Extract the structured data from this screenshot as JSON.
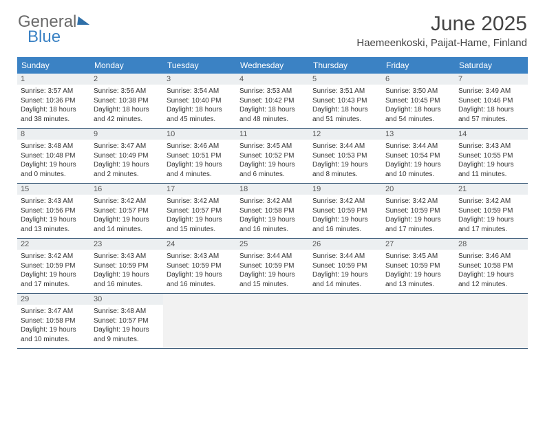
{
  "brand": {
    "part1": "General",
    "part2": "Blue"
  },
  "title": "June 2025",
  "location": "Haemeenkoski, Paijat-Hame, Finland",
  "colors": {
    "header_bg": "#3b82c4",
    "header_text": "#ffffff",
    "daynum_bg": "#eceff1",
    "week_border": "#3b5a78",
    "empty_bg": "#f2f2f2",
    "text": "#333333",
    "title_text": "#444444"
  },
  "typography": {
    "month_title_pt": 30,
    "location_pt": 15,
    "dayheader_pt": 12,
    "daynum_pt": 11,
    "info_pt": 10
  },
  "day_names": [
    "Sunday",
    "Monday",
    "Tuesday",
    "Wednesday",
    "Thursday",
    "Friday",
    "Saturday"
  ],
  "weeks": [
    [
      {
        "n": "1",
        "sr": "3:57 AM",
        "ss": "10:36 PM",
        "h": "18",
        "m": "38"
      },
      {
        "n": "2",
        "sr": "3:56 AM",
        "ss": "10:38 PM",
        "h": "18",
        "m": "42"
      },
      {
        "n": "3",
        "sr": "3:54 AM",
        "ss": "10:40 PM",
        "h": "18",
        "m": "45"
      },
      {
        "n": "4",
        "sr": "3:53 AM",
        "ss": "10:42 PM",
        "h": "18",
        "m": "48"
      },
      {
        "n": "5",
        "sr": "3:51 AM",
        "ss": "10:43 PM",
        "h": "18",
        "m": "51"
      },
      {
        "n": "6",
        "sr": "3:50 AM",
        "ss": "10:45 PM",
        "h": "18",
        "m": "54"
      },
      {
        "n": "7",
        "sr": "3:49 AM",
        "ss": "10:46 PM",
        "h": "18",
        "m": "57"
      }
    ],
    [
      {
        "n": "8",
        "sr": "3:48 AM",
        "ss": "10:48 PM",
        "h": "19",
        "m": "0"
      },
      {
        "n": "9",
        "sr": "3:47 AM",
        "ss": "10:49 PM",
        "h": "19",
        "m": "2"
      },
      {
        "n": "10",
        "sr": "3:46 AM",
        "ss": "10:51 PM",
        "h": "19",
        "m": "4"
      },
      {
        "n": "11",
        "sr": "3:45 AM",
        "ss": "10:52 PM",
        "h": "19",
        "m": "6"
      },
      {
        "n": "12",
        "sr": "3:44 AM",
        "ss": "10:53 PM",
        "h": "19",
        "m": "8"
      },
      {
        "n": "13",
        "sr": "3:44 AM",
        "ss": "10:54 PM",
        "h": "19",
        "m": "10"
      },
      {
        "n": "14",
        "sr": "3:43 AM",
        "ss": "10:55 PM",
        "h": "19",
        "m": "11"
      }
    ],
    [
      {
        "n": "15",
        "sr": "3:43 AM",
        "ss": "10:56 PM",
        "h": "19",
        "m": "13"
      },
      {
        "n": "16",
        "sr": "3:42 AM",
        "ss": "10:57 PM",
        "h": "19",
        "m": "14"
      },
      {
        "n": "17",
        "sr": "3:42 AM",
        "ss": "10:57 PM",
        "h": "19",
        "m": "15"
      },
      {
        "n": "18",
        "sr": "3:42 AM",
        "ss": "10:58 PM",
        "h": "19",
        "m": "16"
      },
      {
        "n": "19",
        "sr": "3:42 AM",
        "ss": "10:59 PM",
        "h": "19",
        "m": "16"
      },
      {
        "n": "20",
        "sr": "3:42 AM",
        "ss": "10:59 PM",
        "h": "19",
        "m": "17"
      },
      {
        "n": "21",
        "sr": "3:42 AM",
        "ss": "10:59 PM",
        "h": "19",
        "m": "17"
      }
    ],
    [
      {
        "n": "22",
        "sr": "3:42 AM",
        "ss": "10:59 PM",
        "h": "19",
        "m": "17"
      },
      {
        "n": "23",
        "sr": "3:43 AM",
        "ss": "10:59 PM",
        "h": "19",
        "m": "16"
      },
      {
        "n": "24",
        "sr": "3:43 AM",
        "ss": "10:59 PM",
        "h": "19",
        "m": "16"
      },
      {
        "n": "25",
        "sr": "3:44 AM",
        "ss": "10:59 PM",
        "h": "19",
        "m": "15"
      },
      {
        "n": "26",
        "sr": "3:44 AM",
        "ss": "10:59 PM",
        "h": "19",
        "m": "14"
      },
      {
        "n": "27",
        "sr": "3:45 AM",
        "ss": "10:59 PM",
        "h": "19",
        "m": "13"
      },
      {
        "n": "28",
        "sr": "3:46 AM",
        "ss": "10:58 PM",
        "h": "19",
        "m": "12"
      }
    ],
    [
      {
        "n": "29",
        "sr": "3:47 AM",
        "ss": "10:58 PM",
        "h": "19",
        "m": "10"
      },
      {
        "n": "30",
        "sr": "3:48 AM",
        "ss": "10:57 PM",
        "h": "19",
        "m": "9"
      },
      null,
      null,
      null,
      null,
      null
    ]
  ],
  "labels": {
    "sunrise": "Sunrise:",
    "sunset": "Sunset:",
    "daylight": "Daylight:",
    "hours_word": "hours",
    "and_word": "and",
    "minutes_word": "minutes."
  }
}
